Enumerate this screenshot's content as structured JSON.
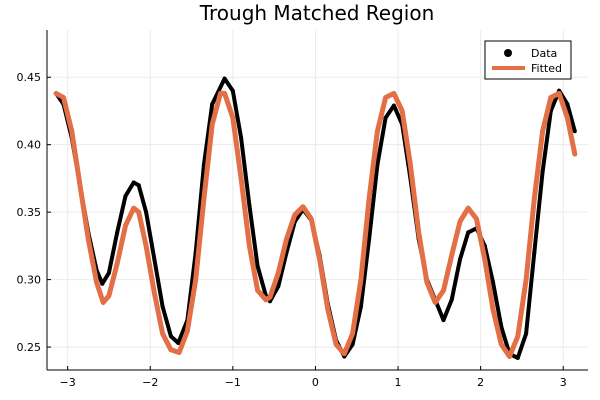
{
  "chart_data": {
    "type": "scatter",
    "title": "Trough Matched Region",
    "xlabel": "",
    "ylabel": "",
    "xlim": [
      -3.25,
      3.3
    ],
    "ylim": [
      0.233,
      0.485
    ],
    "xticks": [
      -3,
      -2,
      -1,
      0,
      1,
      2,
      3
    ],
    "xtick_labels": [
      "−3",
      "−2",
      "−1",
      "0",
      "1",
      "2",
      "3"
    ],
    "yticks": [
      0.25,
      0.3,
      0.35,
      0.4,
      0.45
    ],
    "ytick_labels": [
      "0.25",
      "0.30",
      "0.35",
      "0.40",
      "0.45"
    ],
    "grid": true,
    "legend_position": "top-right",
    "legend": [
      {
        "label": "Data",
        "marker": "circle",
        "color": "#000000"
      },
      {
        "label": "Fitted",
        "marker": "line",
        "color": "#e26f46"
      }
    ],
    "series": [
      {
        "name": "Data",
        "kind": "scatter",
        "color": "#000000",
        "x": [
          -3.14,
          -3.05,
          -2.95,
          -2.85,
          -2.75,
          -2.65,
          -2.58,
          -2.5,
          -2.4,
          -2.3,
          -2.2,
          -2.14,
          -2.05,
          -1.95,
          -1.85,
          -1.75,
          -1.66,
          -1.55,
          -1.45,
          -1.35,
          -1.25,
          -1.1,
          -1.0,
          -0.9,
          -0.8,
          -0.7,
          -0.6,
          -0.55,
          -0.45,
          -0.35,
          -0.25,
          -0.15,
          -0.05,
          0.05,
          0.15,
          0.25,
          0.35,
          0.45,
          0.55,
          0.65,
          0.75,
          0.85,
          0.95,
          1.05,
          1.15,
          1.25,
          1.35,
          1.45,
          1.55,
          1.65,
          1.75,
          1.85,
          1.95,
          2.05,
          2.15,
          2.25,
          2.35,
          2.45,
          2.55,
          2.65,
          2.75,
          2.85,
          2.95,
          3.05,
          3.14
        ],
        "y": [
          0.438,
          0.43,
          0.405,
          0.37,
          0.335,
          0.307,
          0.297,
          0.305,
          0.335,
          0.362,
          0.372,
          0.37,
          0.35,
          0.315,
          0.28,
          0.258,
          0.253,
          0.27,
          0.32,
          0.385,
          0.43,
          0.449,
          0.44,
          0.405,
          0.355,
          0.31,
          0.288,
          0.284,
          0.295,
          0.32,
          0.343,
          0.352,
          0.344,
          0.318,
          0.282,
          0.255,
          0.243,
          0.252,
          0.28,
          0.33,
          0.385,
          0.42,
          0.429,
          0.415,
          0.375,
          0.33,
          0.3,
          0.285,
          0.27,
          0.285,
          0.315,
          0.335,
          0.338,
          0.325,
          0.298,
          0.265,
          0.245,
          0.242,
          0.26,
          0.32,
          0.38,
          0.425,
          0.44,
          0.43,
          0.41
        ]
      },
      {
        "name": "Fitted",
        "kind": "line",
        "color": "#e26f46",
        "x": [
          -3.14,
          -3.05,
          -2.95,
          -2.85,
          -2.75,
          -2.65,
          -2.57,
          -2.5,
          -2.4,
          -2.3,
          -2.2,
          -2.14,
          -2.05,
          -1.95,
          -1.85,
          -1.75,
          -1.65,
          -1.55,
          -1.45,
          -1.35,
          -1.25,
          -1.15,
          -1.1,
          -1.0,
          -0.9,
          -0.8,
          -0.7,
          -0.6,
          -0.55,
          -0.45,
          -0.35,
          -0.25,
          -0.15,
          -0.05,
          0.05,
          0.15,
          0.25,
          0.35,
          0.45,
          0.55,
          0.65,
          0.75,
          0.85,
          0.95,
          1.05,
          1.15,
          1.25,
          1.35,
          1.45,
          1.55,
          1.65,
          1.75,
          1.85,
          1.95,
          2.05,
          2.15,
          2.25,
          2.35,
          2.45,
          2.55,
          2.65,
          2.75,
          2.85,
          2.95,
          3.05,
          3.14
        ],
        "y": [
          0.438,
          0.435,
          0.41,
          0.37,
          0.33,
          0.298,
          0.283,
          0.288,
          0.312,
          0.34,
          0.353,
          0.35,
          0.325,
          0.29,
          0.26,
          0.248,
          0.246,
          0.262,
          0.3,
          0.36,
          0.415,
          0.438,
          0.438,
          0.42,
          0.375,
          0.325,
          0.292,
          0.285,
          0.287,
          0.305,
          0.33,
          0.348,
          0.354,
          0.345,
          0.315,
          0.278,
          0.252,
          0.245,
          0.26,
          0.3,
          0.36,
          0.41,
          0.435,
          0.438,
          0.425,
          0.385,
          0.335,
          0.298,
          0.283,
          0.292,
          0.318,
          0.343,
          0.353,
          0.345,
          0.315,
          0.278,
          0.252,
          0.243,
          0.258,
          0.3,
          0.36,
          0.41,
          0.435,
          0.438,
          0.42,
          0.393
        ]
      }
    ]
  }
}
